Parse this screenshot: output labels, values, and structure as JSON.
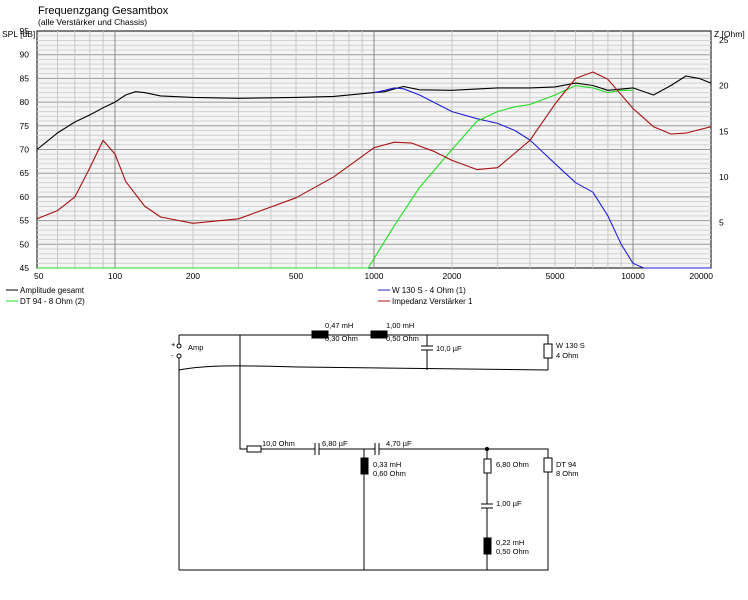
{
  "title": "Frequenzgang Gesamtbox",
  "subtitle": "(alle Verstärker und Chassis)",
  "y_left_label": "SPL [dB]",
  "y_right_label": "Z [Ohm]",
  "legend": [
    {
      "label": "Amplitude gesamt",
      "color": "#000000"
    },
    {
      "label": "DT 94 - 8 Ohm (2)",
      "color": "#22dd22"
    },
    {
      "label": "W 130 S - 4 Ohm (1)",
      "color": "#2222dd"
    },
    {
      "label": "Impedanz Verstärker 1",
      "color": "#aa1111"
    }
  ],
  "chart_data": {
    "type": "line",
    "title": "Frequenzgang Gesamtbox",
    "subtitle": "(alle Verstärker und Chassis)",
    "xlabel": "",
    "ylabel": "SPL [dB]",
    "y2label": "Z [Ohm]",
    "xscale": "log",
    "xlim": [
      50,
      20000
    ],
    "ylim": [
      45,
      95
    ],
    "y2lim": [
      0,
      26
    ],
    "grid": true,
    "legend_position": "bottom",
    "x_ticks": [
      50,
      100,
      200,
      500,
      1000,
      2000,
      5000,
      10000,
      20000
    ],
    "y_ticks": [
      45,
      50,
      55,
      60,
      65,
      70,
      75,
      80,
      85,
      90,
      95
    ],
    "y2_ticks": [
      5,
      10,
      15,
      20,
      25
    ],
    "series": [
      {
        "name": "Amplitude gesamt",
        "axis": "left",
        "color": "#000000",
        "points": [
          [
            50,
            70
          ],
          [
            60,
            73.5
          ],
          [
            70,
            75.8
          ],
          [
            80,
            77.3
          ],
          [
            90,
            78.8
          ],
          [
            100,
            80
          ],
          [
            110,
            81.5
          ],
          [
            120,
            82.2
          ],
          [
            130,
            82
          ],
          [
            150,
            81.3
          ],
          [
            200,
            81
          ],
          [
            300,
            80.8
          ],
          [
            500,
            81
          ],
          [
            700,
            81.2
          ],
          [
            1000,
            82
          ],
          [
            1100,
            82.2
          ],
          [
            1200,
            82.8
          ],
          [
            1300,
            83.3
          ],
          [
            1500,
            82.6
          ],
          [
            2000,
            82.5
          ],
          [
            3000,
            83
          ],
          [
            4000,
            83
          ],
          [
            5000,
            83.2
          ],
          [
            6000,
            84
          ],
          [
            7000,
            83.5
          ],
          [
            8000,
            82.5
          ],
          [
            10000,
            83
          ],
          [
            12000,
            81.5
          ],
          [
            14000,
            83.5
          ],
          [
            16000,
            85.5
          ],
          [
            18000,
            85
          ],
          [
            20000,
            84
          ]
        ]
      },
      {
        "name": "W 130 S - 4 Ohm (1)",
        "axis": "left",
        "color": "#2222dd",
        "points": [
          [
            1000,
            82
          ],
          [
            1100,
            82.5
          ],
          [
            1200,
            83
          ],
          [
            1300,
            82.8
          ],
          [
            1500,
            81.5
          ],
          [
            2000,
            78
          ],
          [
            2500,
            76.5
          ],
          [
            3000,
            75.5
          ],
          [
            3500,
            74
          ],
          [
            4000,
            72
          ],
          [
            5000,
            67
          ],
          [
            6000,
            63
          ],
          [
            7000,
            61
          ],
          [
            8000,
            56
          ],
          [
            9000,
            50
          ],
          [
            10000,
            46
          ],
          [
            11000,
            45
          ],
          [
            20000,
            45
          ]
        ]
      },
      {
        "name": "DT 94 - 8 Ohm (2)",
        "axis": "left",
        "color": "#22dd22",
        "points": [
          [
            50,
            45
          ],
          [
            950,
            45
          ],
          [
            1000,
            47
          ],
          [
            1200,
            54
          ],
          [
            1500,
            62
          ],
          [
            2000,
            70
          ],
          [
            2500,
            76
          ],
          [
            3000,
            78
          ],
          [
            3500,
            79
          ],
          [
            4000,
            79.5
          ],
          [
            5000,
            81.5
          ],
          [
            6000,
            83.5
          ],
          [
            7000,
            83
          ],
          [
            8000,
            82
          ],
          [
            9000,
            82.5
          ],
          [
            10000,
            82.5
          ]
        ]
      },
      {
        "name": "Impedanz Verstärker 1",
        "axis": "right",
        "color": "#aa1111",
        "points": [
          [
            50,
            5.4
          ],
          [
            60,
            6.3
          ],
          [
            70,
            7.8
          ],
          [
            80,
            11
          ],
          [
            90,
            14
          ],
          [
            100,
            12.5
          ],
          [
            110,
            9.5
          ],
          [
            130,
            6.8
          ],
          [
            150,
            5.6
          ],
          [
            200,
            4.9
          ],
          [
            300,
            5.4
          ],
          [
            500,
            7.7
          ],
          [
            700,
            10
          ],
          [
            1000,
            13.2
          ],
          [
            1200,
            13.8
          ],
          [
            1400,
            13.7
          ],
          [
            1700,
            12.8
          ],
          [
            2000,
            11.8
          ],
          [
            2500,
            10.8
          ],
          [
            3000,
            11
          ],
          [
            4000,
            14
          ],
          [
            5000,
            18
          ],
          [
            6000,
            20.8
          ],
          [
            7000,
            21.5
          ],
          [
            8000,
            20.7
          ],
          [
            10000,
            17.5
          ],
          [
            12000,
            15.5
          ],
          [
            14000,
            14.7
          ],
          [
            16000,
            14.8
          ],
          [
            20000,
            15.5
          ]
        ]
      }
    ]
  },
  "circuit": {
    "amp_label": "Amp",
    "plus": "+",
    "minus": "-",
    "woofer_branch": {
      "l1_value": "0,47 mH",
      "l1_res": "0,30 Ohm",
      "l2_value": "1,00 mH",
      "l2_res": "0,50 Ohm",
      "c1_value": "10,0 µF",
      "driver_name": "W 130 S",
      "driver_imp": "4 Ohm"
    },
    "tweeter_branch": {
      "r1_value": "10,0 Ohm",
      "c2_value": "6,80 µF",
      "c3_value": "4,70 µF",
      "l3_value": "0,33 mH",
      "l3_res": "0,60 Ohm",
      "r2_value": "6,80 Ohm",
      "c4_value": "1,00 µF",
      "l4_value": "0,22 mH",
      "l4_res": "0,50 Ohm",
      "driver_name": "DT 94",
      "driver_imp": "8 Ohm"
    }
  }
}
